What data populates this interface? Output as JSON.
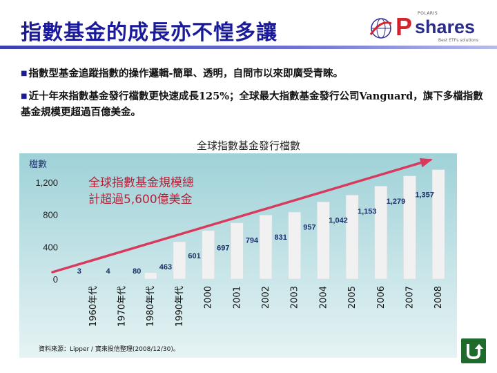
{
  "header": {
    "title": "指數基金的成長亦不惶多讓",
    "logo_top": "POLARIS",
    "logo_p": "P",
    "logo_shares": "shares",
    "logo_sub": "Best ETFs solutions"
  },
  "bullets": [
    "指數型基金追蹤指數的操作邏輯-簡單、透明，自問市以來即廣受青睞。",
    "近十年來指數基金發行檔數更快速成長125%；全球最大指數基金發行公司Vanguard，旗下多檔指數基金規模更超過百億美金。"
  ],
  "chart_data": {
    "type": "bar",
    "title": "全球指數基金發行檔數",
    "ylabel": "檔數",
    "categories": [
      "1960年代",
      "1970年代",
      "1980年代",
      "1990年代",
      "2000",
      "2001",
      "2002",
      "2003",
      "2004",
      "2005",
      "2006",
      "2007",
      "2008"
    ],
    "values": [
      3,
      4,
      80,
      463,
      601,
      697,
      794,
      831,
      957,
      1042,
      1153,
      1279,
      1357
    ],
    "data_labels": [
      "3",
      "4",
      "80",
      "463",
      "601",
      "697",
      "794",
      "831",
      "957",
      "1,042",
      "1,153",
      "1,279",
      "1,357"
    ],
    "ylim": [
      0,
      1500
    ],
    "yticks": [
      0,
      400,
      800,
      1200
    ],
    "ytick_labels": [
      "0",
      "400",
      "800",
      "1,200"
    ],
    "annotation": [
      "全球指數基金規模總",
      "計超過5,600億美金"
    ],
    "colors": {
      "bar": "#f1f1f1",
      "background_top": "#9fd2d8",
      "background_bottom": "#e6f3f4",
      "trend_arrow": "#d83a5e",
      "annotation_text": "#b0243b",
      "label_text": "#1c2f6b"
    }
  },
  "source": "資料來源：Lipper / 寶來投信整理(2008/12/30)。",
  "nav": {
    "button_icon": "u-turn-arrow-icon"
  }
}
